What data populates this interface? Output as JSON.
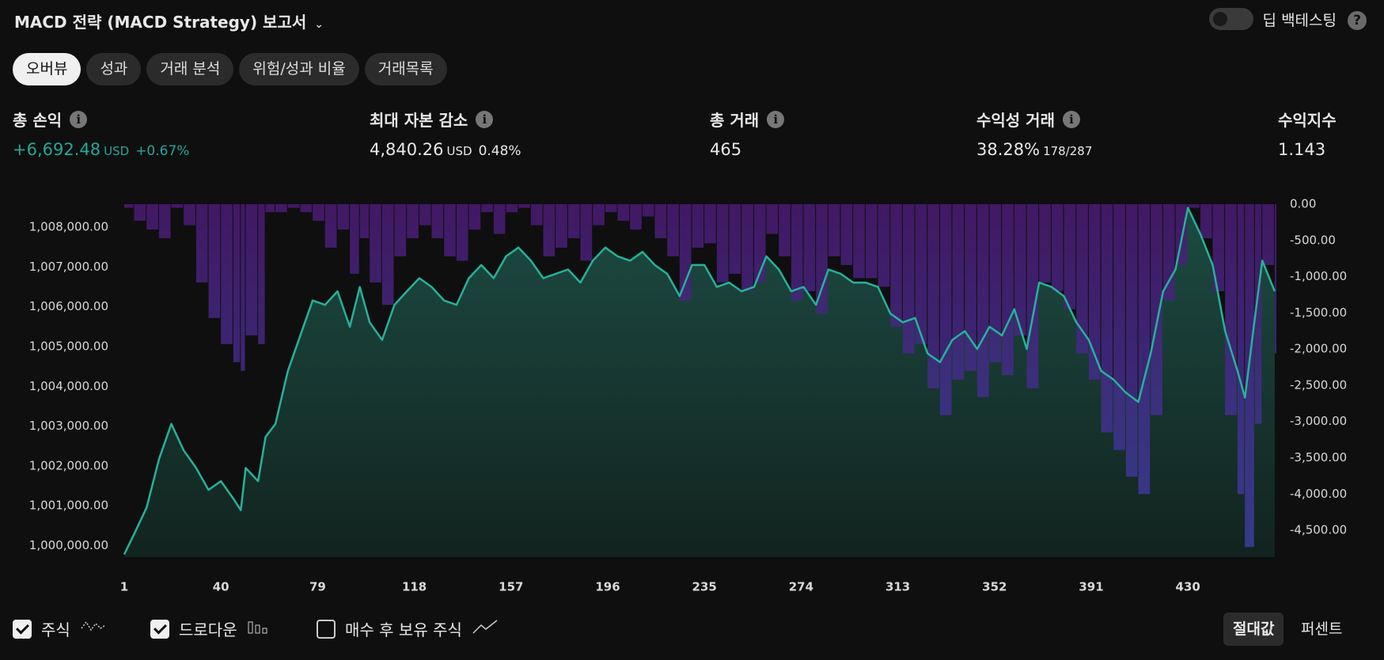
{
  "header": {
    "title": "MACD 전략 (MACD Strategy) 보고서",
    "toggle_label": "딥 백테스팅"
  },
  "tabs": [
    "오버뷰",
    "성과",
    "거래 분석",
    "위험/성과 비율",
    "거래목록"
  ],
  "stats": [
    {
      "label": "총 손익",
      "value": "+6,692.48",
      "unit": "USD",
      "extra": "+0.67%"
    },
    {
      "label": "최대 자본 감소",
      "value": "4,840.26",
      "unit": "USD",
      "extra": "0.48%"
    },
    {
      "label": "총 거래",
      "value": "465"
    },
    {
      "label": "수익성 거래",
      "value": "38.28%",
      "extra": "178/287"
    },
    {
      "label": "수익지수",
      "value": "1.143"
    }
  ],
  "chart_data": {
    "type": "line",
    "x": [
      1,
      5,
      10,
      15,
      20,
      25,
      30,
      35,
      40,
      45,
      48,
      50,
      55,
      58,
      62,
      67,
      72,
      77,
      82,
      87,
      92,
      96,
      100,
      105,
      110,
      115,
      120,
      125,
      130,
      135,
      140,
      145,
      150,
      155,
      160,
      165,
      170,
      175,
      180,
      185,
      190,
      195,
      200,
      205,
      210,
      215,
      220,
      225,
      230,
      235,
      240,
      245,
      250,
      255,
      260,
      265,
      270,
      275,
      280,
      285,
      290,
      295,
      300,
      305,
      310,
      315,
      320,
      325,
      330,
      335,
      340,
      345,
      350,
      355,
      360,
      365,
      370,
      375,
      380,
      385,
      390,
      395,
      400,
      405,
      410,
      415,
      420,
      425,
      430,
      435,
      440,
      445,
      450,
      453,
      457,
      460,
      465
    ],
    "series": [
      {
        "name": "주식",
        "color": "#26b29a",
        "checked": true,
        "values": [
          999780,
          1000290,
          1000950,
          1002170,
          1003060,
          1002390,
          1001950,
          1001400,
          1001620,
          1001180,
          1000890,
          1001950,
          1001620,
          1002730,
          1003060,
          1004390,
          1005280,
          1006160,
          1006050,
          1006390,
          1005500,
          1006500,
          1005610,
          1005170,
          1006050,
          1006390,
          1006720,
          1006500,
          1006160,
          1006050,
          1006720,
          1007050,
          1006720,
          1007270,
          1007490,
          1007160,
          1006720,
          1006830,
          1006940,
          1006610,
          1007160,
          1007490,
          1007270,
          1007160,
          1007380,
          1007050,
          1006830,
          1006270,
          1007050,
          1007050,
          1006500,
          1006610,
          1006390,
          1006500,
          1007270,
          1006940,
          1006390,
          1006500,
          1006050,
          1006940,
          1006830,
          1006610,
          1006610,
          1006500,
          1005830,
          1005610,
          1005720,
          1004830,
          1004610,
          1005170,
          1005390,
          1004940,
          1005500,
          1005280,
          1005940,
          1004940,
          1006610,
          1006500,
          1006270,
          1005610,
          1005170,
          1004390,
          1004170,
          1003840,
          1003610,
          1004830,
          1006390,
          1006940,
          1008490,
          1007830,
          1007050,
          1005390,
          1004390,
          1003720,
          1005720,
          1007160,
          1006390
        ]
      },
      {
        "name": "드로다운",
        "color": "#5b2a8e",
        "type": "bar",
        "axis": "y2",
        "checked": true,
        "values": [
          -50,
          -230,
          -350,
          -470,
          -50,
          -290,
          -1080,
          -1570,
          -1930,
          -2180,
          -2300,
          -1810,
          -1930,
          -110,
          -110,
          -50,
          -110,
          -230,
          -600,
          -350,
          -960,
          -470,
          -1080,
          -1390,
          -720,
          -470,
          -290,
          -470,
          -720,
          -780,
          -350,
          -110,
          -410,
          -110,
          -50,
          -290,
          -720,
          -600,
          -470,
          -780,
          -290,
          -110,
          -230,
          -350,
          -170,
          -470,
          -720,
          -1330,
          -600,
          -540,
          -1080,
          -960,
          -1200,
          -1080,
          -410,
          -720,
          -1330,
          -1200,
          -1510,
          -720,
          -840,
          -1020,
          -1020,
          -1140,
          -1690,
          -2060,
          -1930,
          -2540,
          -2910,
          -2420,
          -2300,
          -2660,
          -2180,
          -2360,
          -1810,
          -2540,
          -1080,
          -1200,
          -1450,
          -2060,
          -2420,
          -3150,
          -3390,
          -3760,
          -4000,
          -2910,
          -1330,
          -840,
          -50,
          -470,
          -1200,
          -2910,
          -4000,
          -4730,
          -3030,
          -840,
          -2060
        ]
      }
    ],
    "xlim": [
      1,
      466
    ],
    "xticks": [
      1,
      40,
      79,
      118,
      157,
      196,
      235,
      274,
      313,
      352,
      391,
      430
    ],
    "ylim": [
      999710,
      1008580
    ],
    "yticks": [
      {
        "value": 1000000,
        "label": "1,000,000.00"
      },
      {
        "value": 1001000,
        "label": "1,001,000.00"
      },
      {
        "value": 1002000,
        "label": "1,002,000.00"
      },
      {
        "value": 1003000,
        "label": "1,003,000.00"
      },
      {
        "value": 1004000,
        "label": "1,004,000.00"
      },
      {
        "value": 1005000,
        "label": "1,005,000.00"
      },
      {
        "value": 1006000,
        "label": "1,006,000.00"
      },
      {
        "value": 1007000,
        "label": "1,007,000.00"
      },
      {
        "value": 1008000,
        "label": "1,008,000.00"
      }
    ],
    "y2lim": [
      -4870,
      0
    ],
    "y2ticks": [
      {
        "value": 0,
        "label": "0.00"
      },
      {
        "value": -500,
        "label": "-500.00"
      },
      {
        "value": -1000,
        "label": "-1,000.00"
      },
      {
        "value": -1500,
        "label": "-1,500.00"
      },
      {
        "value": -2000,
        "label": "-2,000.00"
      },
      {
        "value": -2500,
        "label": "-2,500.00"
      },
      {
        "value": -3000,
        "label": "-3,000.00"
      },
      {
        "value": -3500,
        "label": "-3,500.00"
      },
      {
        "value": -4000,
        "label": "-4,000.00"
      },
      {
        "value": -4500,
        "label": "-4,500.00"
      }
    ],
    "grid": false
  },
  "buy_hold": {
    "label": "매수 후 보유 주식",
    "checked": false
  },
  "scale_buttons": [
    "절대값",
    "퍼센트"
  ]
}
